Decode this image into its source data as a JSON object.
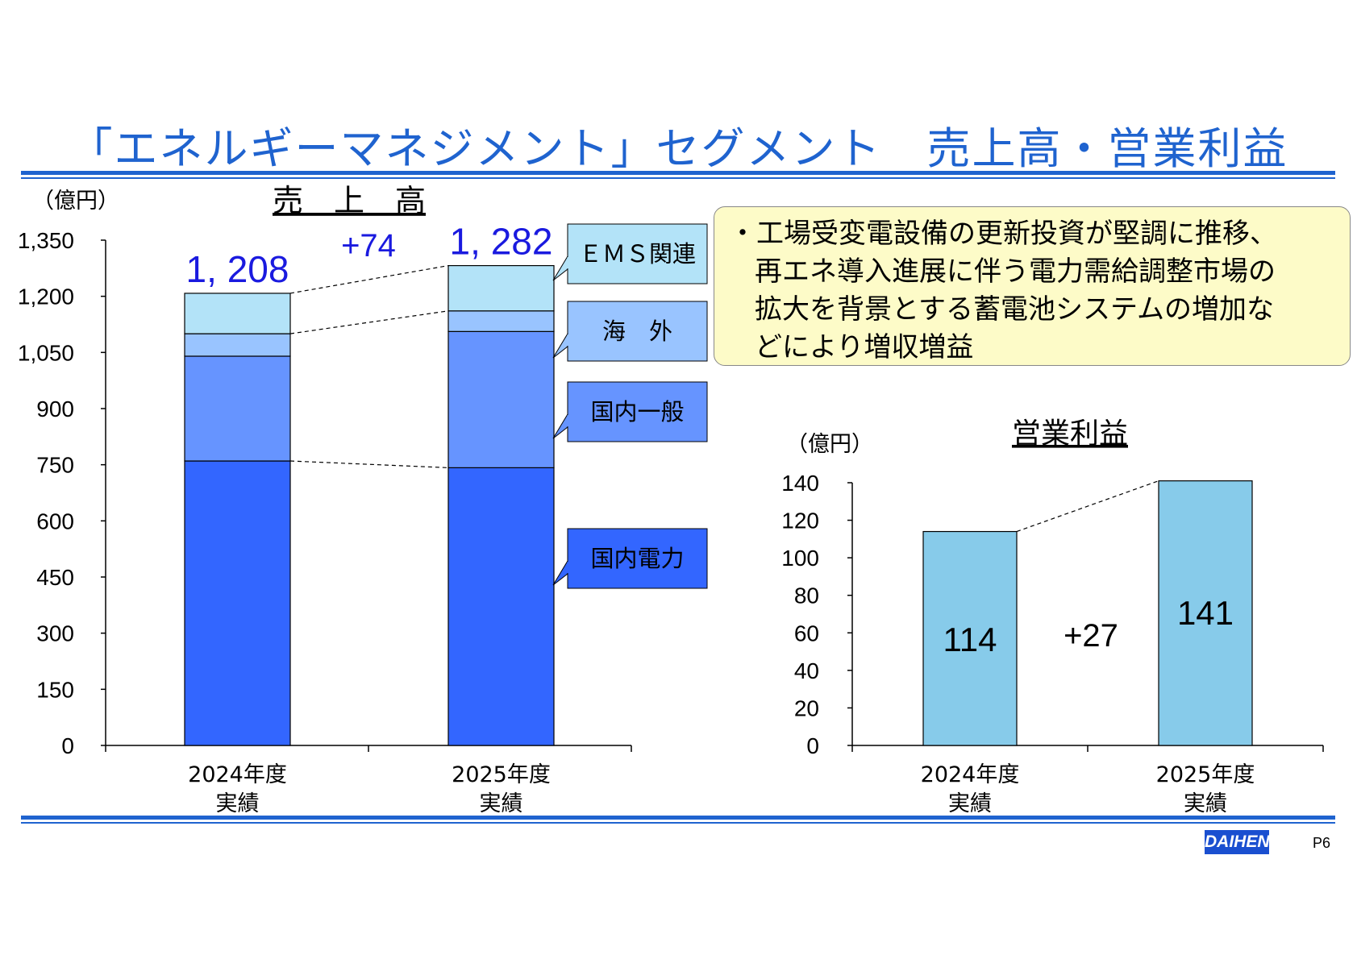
{
  "page": {
    "title": "「エネルギーマネジメント」セグメント　売上高・営業利益",
    "page_number": "P6",
    "logo_text": "DAIHEN"
  },
  "note": {
    "lines": [
      "・工場受変電設備の更新投資が堅調に推移、",
      "再エネ導入進展に伴う電力需給調整市場の",
      "拡大を背景とする蓄電池システムの増加な",
      "どにより増収増益"
    ]
  },
  "chart_data": [
    {
      "type": "bar",
      "stacked": true,
      "title": "売　上　高",
      "unit_label": "（億円）",
      "categories": [
        [
          "2024年度",
          "実績"
        ],
        [
          "2025年度",
          "実績"
        ]
      ],
      "ylim": [
        0,
        1350
      ],
      "yticks": [
        "0",
        "150",
        "300",
        "450",
        "600",
        "750",
        "900",
        "1,050",
        "1,200",
        "1,350"
      ],
      "series": [
        {
          "name": "国内電力",
          "values": [
            760,
            742
          ],
          "color": "#3366ff"
        },
        {
          "name": "国内一般",
          "values": [
            280,
            364
          ],
          "color": "#6694ff"
        },
        {
          "name": "海　外",
          "values": [
            60,
            55
          ],
          "color": "#99c4ff"
        },
        {
          "name": "ＥＭＳ関連",
          "values": [
            108,
            121
          ],
          "color": "#b3e3f8"
        }
      ],
      "totals": [
        "1, 208",
        "1, 282"
      ],
      "diff_label": "+74"
    },
    {
      "type": "bar",
      "title": "営業利益",
      "unit_label": "（億円）",
      "categories": [
        [
          "2024年度",
          "実績"
        ],
        [
          "2025年度",
          "実績"
        ]
      ],
      "ylim": [
        0,
        140
      ],
      "yticks": [
        "0",
        "20",
        "40",
        "60",
        "80",
        "100",
        "120",
        "140"
      ],
      "values": [
        114,
        141
      ],
      "value_labels": [
        "114",
        "141"
      ],
      "color": "#87cbea",
      "diff_label": "+27"
    }
  ]
}
